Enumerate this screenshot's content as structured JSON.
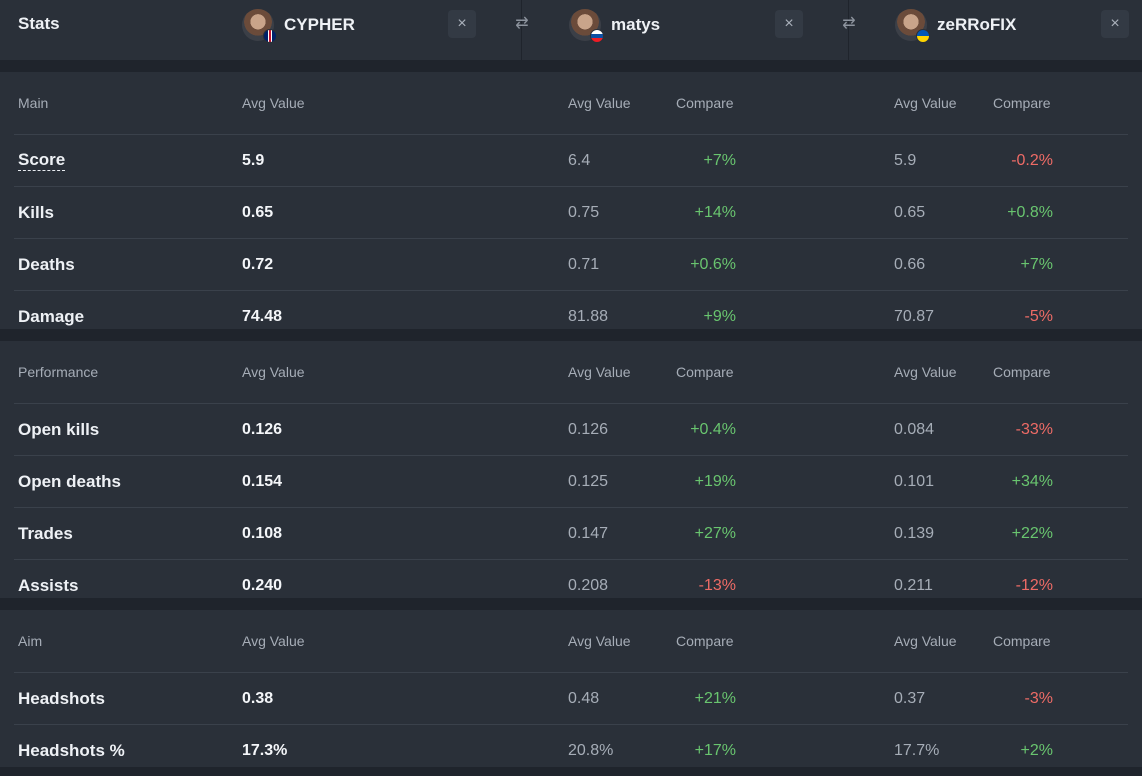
{
  "header": {
    "title": "Stats",
    "players": [
      {
        "name": "CYPHER",
        "flag_color": "#c8102e"
      },
      {
        "name": "matys",
        "flag_color": "#0b4ea2"
      },
      {
        "name": "zeRRoFIX",
        "flag_color": "#ffd500"
      }
    ],
    "close_icon": "×",
    "swap_icon": "⇄"
  },
  "columns": {
    "avg_value": "Avg Value",
    "compare": "Compare"
  },
  "sections": [
    {
      "name": "Main",
      "rows": [
        {
          "label": "Score",
          "p1": "5.9",
          "p2": "6.4",
          "c2": "+7%",
          "p3": "5.9",
          "c3": "-0.2%"
        },
        {
          "label": "Kills",
          "p1": "0.65",
          "p2": "0.75",
          "c2": "+14%",
          "p3": "0.65",
          "c3": "+0.8%"
        },
        {
          "label": "Deaths",
          "p1": "0.72",
          "p2": "0.71",
          "c2": "+0.6%",
          "p3": "0.66",
          "c3": "+7%"
        },
        {
          "label": "Damage",
          "p1": "74.48",
          "p2": "81.88",
          "c2": "+9%",
          "p3": "70.87",
          "c3": "-5%"
        }
      ]
    },
    {
      "name": "Performance",
      "rows": [
        {
          "label": "Open kills",
          "p1": "0.126",
          "p2": "0.126",
          "c2": "+0.4%",
          "p3": "0.084",
          "c3": "-33%"
        },
        {
          "label": "Open deaths",
          "p1": "0.154",
          "p2": "0.125",
          "c2": "+19%",
          "p3": "0.101",
          "c3": "+34%"
        },
        {
          "label": "Trades",
          "p1": "0.108",
          "p2": "0.147",
          "c2": "+27%",
          "p3": "0.139",
          "c3": "+22%"
        },
        {
          "label": "Assists",
          "p1": "0.240",
          "p2": "0.208",
          "c2": "-13%",
          "p3": "0.211",
          "c3": "-12%"
        }
      ]
    },
    {
      "name": "Aim",
      "rows": [
        {
          "label": "Headshots",
          "p1": "0.38",
          "p2": "0.48",
          "c2": "+21%",
          "p3": "0.37",
          "c3": "-3%"
        },
        {
          "label": "Headshots %",
          "p1": "17.3%",
          "p2": "20.8%",
          "c2": "+17%",
          "p3": "17.7%",
          "c3": "+2%"
        }
      ]
    }
  ]
}
